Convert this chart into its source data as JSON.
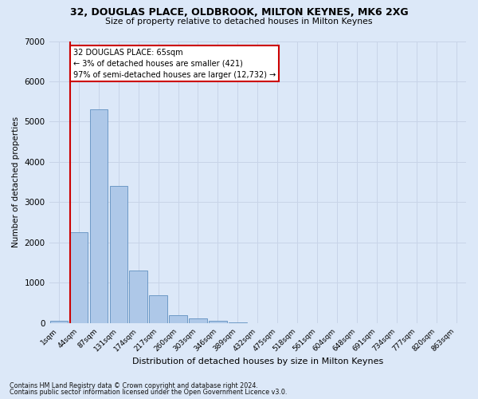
{
  "title_line1": "32, DOUGLAS PLACE, OLDBROOK, MILTON KEYNES, MK6 2XG",
  "title_line2": "Size of property relative to detached houses in Milton Keynes",
  "xlabel": "Distribution of detached houses by size in Milton Keynes",
  "ylabel": "Number of detached properties",
  "footnote1": "Contains HM Land Registry data © Crown copyright and database right 2024.",
  "footnote2": "Contains public sector information licensed under the Open Government Licence v3.0.",
  "bar_labels": [
    "1sqm",
    "44sqm",
    "87sqm",
    "131sqm",
    "174sqm",
    "217sqm",
    "260sqm",
    "303sqm",
    "346sqm",
    "389sqm",
    "432sqm",
    "475sqm",
    "518sqm",
    "561sqm",
    "604sqm",
    "648sqm",
    "691sqm",
    "734sqm",
    "777sqm",
    "820sqm",
    "863sqm"
  ],
  "bar_values": [
    50,
    2250,
    5300,
    3400,
    1300,
    700,
    200,
    120,
    50,
    10,
    5,
    2,
    1,
    0,
    0,
    0,
    0,
    0,
    0,
    0,
    0
  ],
  "bar_color": "#aec8e8",
  "bar_edgecolor": "#6090c0",
  "ylim": [
    0,
    7000
  ],
  "yticks": [
    0,
    1000,
    2000,
    3000,
    4000,
    5000,
    6000,
    7000
  ],
  "property_line_color": "#cc0000",
  "property_line_x": 0.57,
  "annotation_text": "32 DOUGLAS PLACE: 65sqm\n← 3% of detached houses are smaller (421)\n97% of semi-detached houses are larger (12,732) →",
  "annotation_box_facecolor": "#ffffff",
  "annotation_box_edgecolor": "#cc0000",
  "grid_color": "#c8d4e8",
  "bg_color": "#dce8f8"
}
